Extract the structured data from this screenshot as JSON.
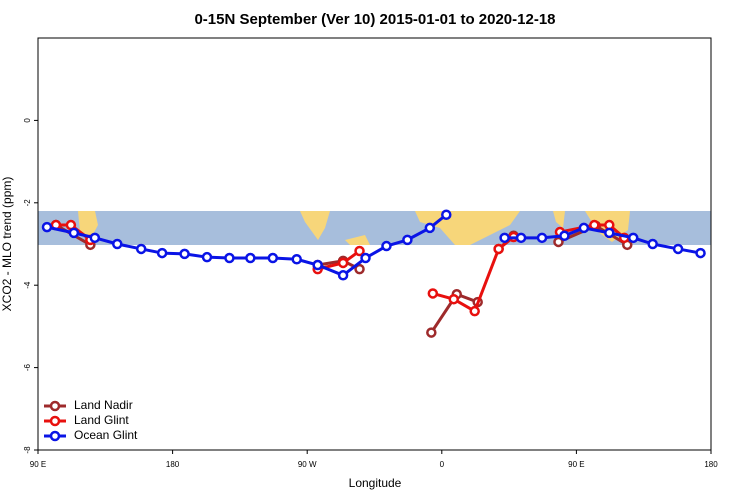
{
  "chart_data": {
    "type": "line",
    "title": "0-15N September (Ver 10)   2015-01-01 to 2020-12-18",
    "xlabel": "Longitude",
    "ylabel": "XCO2 - MLO trend (ppm)",
    "xlim": [
      90,
      540
    ],
    "ylim": [
      -8,
      2
    ],
    "xticks": [
      {
        "value": 90,
        "label": "90 E"
      },
      {
        "value": 180,
        "label": "180"
      },
      {
        "value": 270,
        "label": "90 W"
      },
      {
        "value": 360,
        "label": "0"
      },
      {
        "value": 450,
        "label": "90 E"
      },
      {
        "value": 540,
        "label": "180"
      }
    ],
    "yticks": [
      -8,
      -6,
      -4,
      -2,
      0
    ],
    "legend": "bottom-left",
    "series": [
      {
        "name": "Land Nadir",
        "color": "#9e2a2b",
        "x": [
          102,
          125,
          null,
          277,
          294,
          305,
          null,
          353,
          370,
          384,
          null,
          398,
          408,
          null,
          438,
          463,
          484
        ],
        "values": [
          -2.54,
          -3.02,
          null,
          -3.51,
          -3.41,
          -3.61,
          null,
          -5.15,
          -4.22,
          -4.41,
          null,
          -3.12,
          -2.8,
          null,
          -2.95,
          -2.56,
          -3.02
        ]
      },
      {
        "name": "Land Glint",
        "color": "#e8100e",
        "x": [
          102,
          112,
          125,
          null,
          277,
          294,
          305,
          null,
          354,
          368,
          382,
          398,
          408,
          null,
          439,
          462,
          472,
          482
        ],
        "values": [
          -2.54,
          -2.54,
          -2.9,
          null,
          -3.61,
          -3.46,
          -3.17,
          null,
          -4.2,
          -4.34,
          -4.63,
          -3.12,
          -2.83,
          null,
          -2.71,
          -2.54,
          -2.54,
          -2.85
        ]
      },
      {
        "name": "Ocean Glint",
        "color": "#0a14e6",
        "x": [
          96,
          114,
          128,
          143,
          159,
          173,
          188,
          203,
          218,
          232,
          247,
          263,
          277,
          294,
          309,
          323,
          337,
          352,
          363,
          null,
          402,
          413,
          427,
          442,
          455,
          472,
          488,
          501,
          518,
          533
        ],
        "values": [
          -2.59,
          -2.73,
          -2.85,
          -3.0,
          -3.12,
          -3.22,
          -3.24,
          -3.32,
          -3.34,
          -3.34,
          -3.34,
          -3.37,
          -3.51,
          -3.76,
          -3.34,
          -3.05,
          -2.9,
          -2.61,
          -2.29,
          null,
          -2.85,
          -2.85,
          -2.85,
          -2.8,
          -2.61,
          -2.73,
          -2.85,
          -3.0,
          -3.12,
          -3.22
        ]
      }
    ]
  }
}
